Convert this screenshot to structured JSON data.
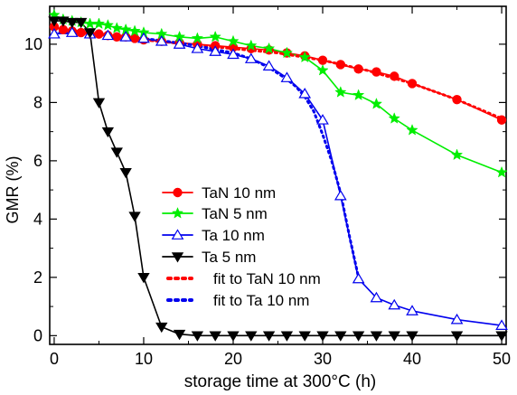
{
  "chart_data": {
    "type": "line",
    "title": "",
    "xlabel": "storage time at 300°C (h)",
    "ylabel": "GMR (%)",
    "xlim": [
      -0.5,
      50.5
    ],
    "ylim": [
      -0.3,
      11.3
    ],
    "xticks": [
      0,
      10,
      20,
      30,
      40,
      50
    ],
    "yticks": [
      0,
      2,
      4,
      6,
      8,
      10
    ],
    "grid": false,
    "legend_position": "center-left",
    "series": [
      {
        "name": "TaN 10 nm",
        "color": "#ff0000",
        "marker": "circle-filled",
        "line": "solid",
        "x": [
          0,
          1,
          2,
          3,
          4,
          5,
          6,
          7,
          8,
          9,
          10,
          12,
          14,
          16,
          18,
          20,
          22,
          24,
          26,
          28,
          30,
          32,
          34,
          36,
          38,
          40,
          45,
          50
        ],
        "y": [
          10.6,
          10.5,
          10.45,
          10.4,
          10.35,
          10.35,
          10.3,
          10.25,
          10.25,
          10.2,
          10.15,
          10.1,
          10.05,
          10.0,
          9.95,
          9.9,
          9.85,
          9.8,
          9.7,
          9.6,
          9.45,
          9.3,
          9.15,
          9.05,
          8.9,
          8.65,
          8.1,
          7.4
        ]
      },
      {
        "name": "TaN 5 nm",
        "color": "#00ee00",
        "marker": "star",
        "line": "solid",
        "x": [
          0,
          1,
          2,
          3,
          4,
          5,
          6,
          7,
          8,
          9,
          10,
          12,
          14,
          16,
          18,
          20,
          22,
          24,
          26,
          28,
          30,
          32,
          34,
          36,
          38,
          40,
          45,
          50
        ],
        "y": [
          11.0,
          10.85,
          10.8,
          10.75,
          10.7,
          10.7,
          10.65,
          10.55,
          10.5,
          10.45,
          10.4,
          10.35,
          10.25,
          10.2,
          10.25,
          10.1,
          9.95,
          9.85,
          9.7,
          9.55,
          9.1,
          8.35,
          8.25,
          7.95,
          7.45,
          7.05,
          6.2,
          5.6
        ]
      },
      {
        "name": "Ta 10 nm",
        "color": "#0000ee",
        "marker": "triangle-up-open",
        "line": "solid",
        "x": [
          0,
          2,
          4,
          6,
          8,
          10,
          12,
          14,
          16,
          18,
          20,
          22,
          24,
          26,
          28,
          30,
          32,
          34,
          36,
          38,
          40,
          45,
          50
        ],
        "y": [
          10.35,
          10.4,
          10.35,
          10.3,
          10.25,
          10.2,
          10.1,
          10.0,
          9.85,
          9.75,
          9.65,
          9.5,
          9.25,
          8.85,
          8.3,
          7.4,
          4.8,
          1.95,
          1.3,
          1.05,
          0.85,
          0.55,
          0.35
        ]
      },
      {
        "name": "Ta 5 nm",
        "color": "#000000",
        "marker": "triangle-down-filled",
        "line": "solid",
        "x": [
          0,
          1,
          2,
          3,
          4,
          5,
          6,
          7,
          8,
          9,
          10,
          12,
          14,
          16,
          18,
          20,
          22,
          24,
          26,
          28,
          30,
          32,
          34,
          36,
          38,
          40,
          45,
          50
        ],
        "y": [
          10.8,
          10.8,
          10.75,
          10.75,
          10.4,
          8.0,
          7.0,
          6.3,
          5.6,
          4.1,
          2.0,
          0.3,
          0.05,
          0.0,
          0.0,
          0.0,
          0.0,
          0.0,
          0.0,
          0.0,
          0.0,
          0.0,
          0.0,
          0.0,
          0.0,
          0.0,
          0.0,
          0.0
        ]
      },
      {
        "name": "fit to TaN 10 nm",
        "color": "#ff0000",
        "marker": "none",
        "line": "dotted",
        "x": [
          0,
          5,
          10,
          15,
          20,
          25,
          30,
          35,
          40,
          45,
          50
        ],
        "y": [
          10.55,
          10.35,
          10.15,
          10.0,
          9.85,
          9.7,
          9.45,
          9.1,
          8.65,
          8.1,
          7.45
        ]
      },
      {
        "name": "fit to Ta 10 nm",
        "color": "#0000ee",
        "marker": "none",
        "line": "dotted",
        "x": [
          0,
          5,
          10,
          15,
          20,
          22,
          24,
          26,
          27,
          28,
          29,
          30,
          31,
          32,
          33,
          34
        ],
        "y": [
          10.4,
          10.35,
          10.2,
          10.0,
          9.7,
          9.5,
          9.2,
          8.8,
          8.55,
          8.2,
          7.7,
          6.9,
          6.0,
          4.9,
          3.4,
          2.0
        ]
      }
    ]
  }
}
